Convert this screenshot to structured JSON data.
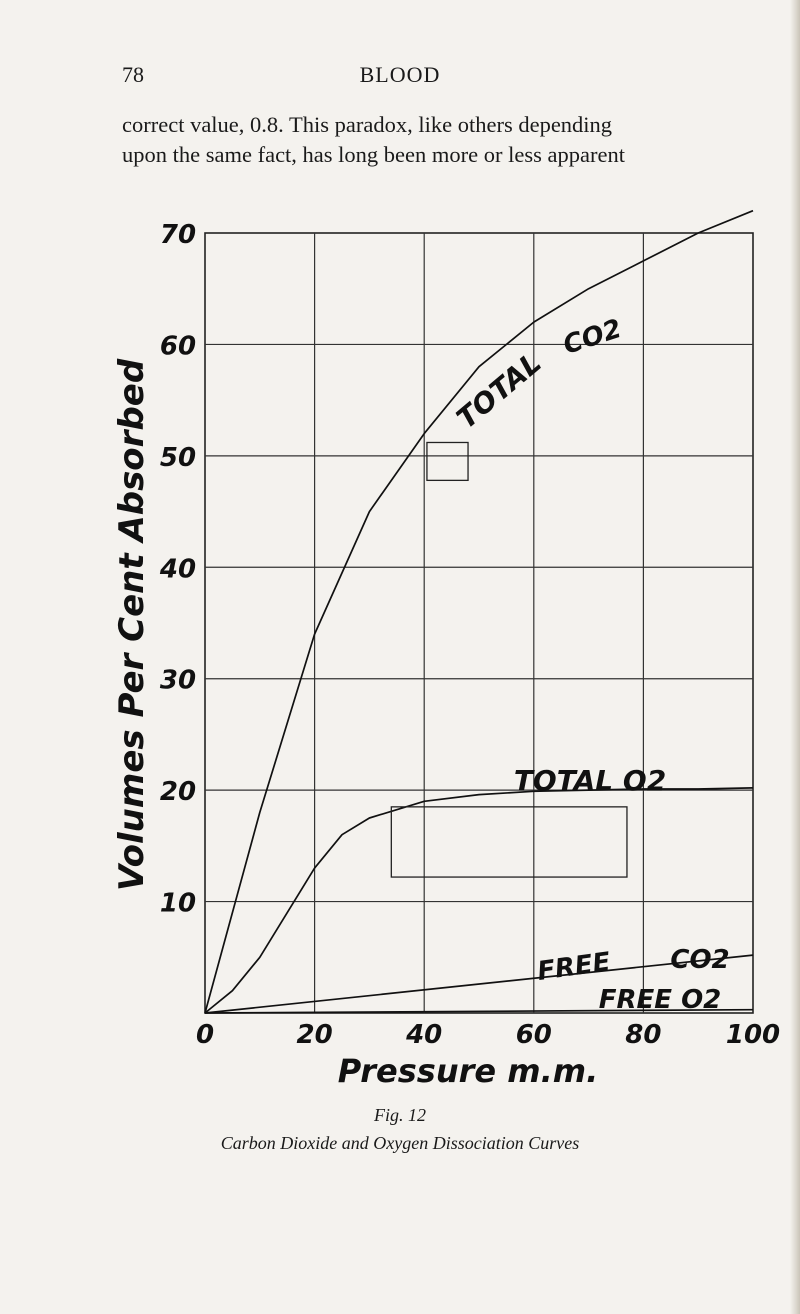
{
  "header": {
    "page_number": "78",
    "running_head": "BLOOD"
  },
  "body": {
    "line1": "correct value, 0.8. This paradox, like others depending",
    "line2": "upon the same fact, has long been more or less apparent"
  },
  "figure": {
    "label": "Fig. 12",
    "caption": "Carbon Dioxide and Oxygen Dissociation Curves"
  },
  "chart_data": {
    "type": "line",
    "xlabel": "Pressure m.m.",
    "ylabel": "Volumes Per Cent Absorbed",
    "xlim": [
      0,
      100
    ],
    "ylim": [
      0,
      70
    ],
    "x_ticks": [
      "0",
      "20",
      "40",
      "60",
      "80",
      "100"
    ],
    "y_ticks": [
      "10",
      "20",
      "30",
      "40",
      "50",
      "60",
      "70"
    ],
    "grid": true,
    "series": [
      {
        "name": "TOTAL CO2",
        "x": [
          0,
          10,
          15,
          20,
          30,
          40,
          50,
          60,
          70,
          80,
          90,
          100
        ],
        "y": [
          0,
          18,
          26,
          34,
          45,
          52,
          58,
          62,
          65,
          67.5,
          70,
          72
        ]
      },
      {
        "name": "TOTAL O2",
        "x": [
          0,
          5,
          10,
          15,
          20,
          25,
          30,
          40,
          50,
          60,
          70,
          80,
          90,
          100
        ],
        "y": [
          0,
          2,
          5,
          9,
          13,
          16,
          17.5,
          19,
          19.6,
          19.9,
          20.0,
          20.1,
          20.1,
          20.2
        ]
      },
      {
        "name": "FREE CO2",
        "x": [
          0,
          100
        ],
        "y": [
          0,
          5.2
        ]
      },
      {
        "name": "FREE O2",
        "x": [
          0,
          100
        ],
        "y": [
          0,
          0.3
        ]
      }
    ],
    "annotations": [
      "TOTAL",
      "CO2",
      "TOTAL O2",
      "FREE",
      "CO2",
      "FREE O2"
    ]
  }
}
